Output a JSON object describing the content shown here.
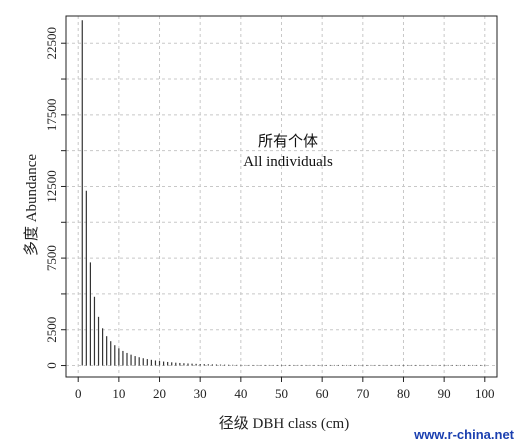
{
  "chart_data": {
    "type": "bar",
    "xlabel": "径级 DBH class (cm)",
    "ylabel": "多度 Abundance",
    "annotation_lines": [
      "所有个体",
      "All individuals"
    ],
    "xlim": [
      -3,
      103
    ],
    "ylim": [
      -800,
      24400
    ],
    "x_ticks": [
      0,
      10,
      20,
      30,
      40,
      50,
      60,
      70,
      80,
      90,
      100
    ],
    "y_ticks": [
      0,
      2500,
      7500,
      12500,
      17500,
      22500
    ],
    "y_minor_ticks": [
      5000,
      10000,
      15000,
      20000
    ],
    "grid": true,
    "x": [
      1,
      2,
      3,
      4,
      5,
      6,
      7,
      8,
      9,
      10,
      11,
      12,
      13,
      14,
      15,
      16,
      17,
      18,
      19,
      20,
      21,
      22,
      23,
      24,
      25,
      26,
      27,
      28,
      29,
      30,
      31,
      32,
      33,
      34,
      35,
      36,
      37,
      38,
      39,
      40,
      41,
      42,
      43,
      44,
      45,
      46,
      47,
      48,
      49,
      50,
      51,
      52,
      53,
      54,
      55,
      56,
      57,
      58,
      59,
      60,
      61,
      62,
      63,
      64,
      65,
      66,
      67,
      68,
      69,
      70,
      71,
      72,
      73,
      74,
      75,
      76,
      77,
      78,
      79,
      80,
      81,
      82,
      83,
      84,
      85,
      86,
      87,
      88,
      89,
      90,
      91,
      92,
      93,
      94,
      95,
      96,
      97,
      98,
      99,
      100
    ],
    "values": [
      24100,
      12200,
      7200,
      4800,
      3400,
      2600,
      2050,
      1700,
      1420,
      1200,
      1020,
      880,
      760,
      660,
      580,
      510,
      450,
      400,
      355,
      315,
      280,
      250,
      225,
      200,
      180,
      162,
      146,
      132,
      119,
      108,
      98,
      89,
      81,
      74,
      67,
      61,
      56,
      51,
      47,
      43,
      39,
      36,
      33,
      30,
      28,
      26,
      24,
      22,
      20,
      18,
      17,
      16,
      15,
      14,
      13,
      12,
      11,
      10,
      9,
      9,
      8,
      8,
      7,
      7,
      6,
      6,
      5,
      5,
      5,
      4,
      4,
      4,
      3,
      3,
      3,
      3,
      2,
      2,
      2,
      2,
      2,
      2,
      2,
      1,
      1,
      1,
      1,
      1,
      1,
      1,
      1,
      1,
      1,
      1,
      1,
      1,
      1,
      1,
      1,
      1
    ]
  },
  "watermark": "www.r-china.net"
}
